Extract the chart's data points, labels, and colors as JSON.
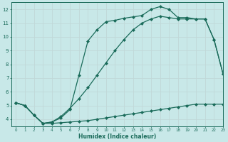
{
  "title": "",
  "xlabel": "Humidex (Indice chaleur)",
  "ylabel": "",
  "bg_color": "#c8e8e8",
  "grid_color": "#c0d8d8",
  "line_color": "#1a6b5a",
  "xlim": [
    -0.5,
    23
  ],
  "ylim": [
    3.5,
    12.5
  ],
  "xticks": [
    0,
    1,
    2,
    3,
    4,
    5,
    6,
    7,
    8,
    9,
    10,
    11,
    12,
    13,
    14,
    15,
    16,
    17,
    18,
    19,
    20,
    21,
    22,
    23
  ],
  "yticks": [
    4,
    5,
    6,
    7,
    8,
    9,
    10,
    11,
    12
  ],
  "line1_x": [
    0,
    1,
    2,
    3,
    4,
    5,
    6,
    7,
    8,
    9,
    10,
    11,
    12,
    13,
    14,
    15,
    16,
    17,
    18,
    19,
    20,
    21,
    22,
    23
  ],
  "line1_y": [
    5.2,
    5.0,
    4.3,
    3.7,
    3.7,
    3.75,
    3.8,
    3.85,
    3.9,
    4.0,
    4.1,
    4.2,
    4.3,
    4.4,
    4.5,
    4.6,
    4.7,
    4.8,
    4.9,
    5.0,
    5.1,
    5.1,
    5.1,
    5.1
  ],
  "line2_x": [
    0,
    1,
    2,
    3,
    4,
    5,
    6,
    7,
    8,
    9,
    10,
    11,
    12,
    13,
    14,
    15,
    16,
    17,
    18,
    19,
    20,
    21,
    22,
    23
  ],
  "line2_y": [
    5.2,
    5.0,
    4.3,
    3.7,
    3.8,
    4.2,
    4.8,
    5.5,
    6.3,
    7.2,
    8.1,
    9.0,
    9.8,
    10.5,
    11.0,
    11.3,
    11.5,
    11.4,
    11.3,
    11.3,
    11.3,
    11.3,
    9.8,
    7.3
  ],
  "line3_x": [
    0,
    1,
    2,
    3,
    4,
    5,
    6,
    7,
    8,
    9,
    10,
    11,
    12,
    13,
    14,
    15,
    16,
    17,
    18,
    19,
    20,
    21,
    22,
    23
  ],
  "line3_y": [
    5.2,
    5.0,
    4.3,
    3.7,
    3.8,
    4.1,
    4.7,
    7.2,
    9.7,
    10.5,
    11.1,
    11.2,
    11.35,
    11.45,
    11.55,
    12.0,
    12.2,
    12.0,
    11.4,
    11.4,
    11.3,
    11.3,
    9.8,
    7.3
  ]
}
